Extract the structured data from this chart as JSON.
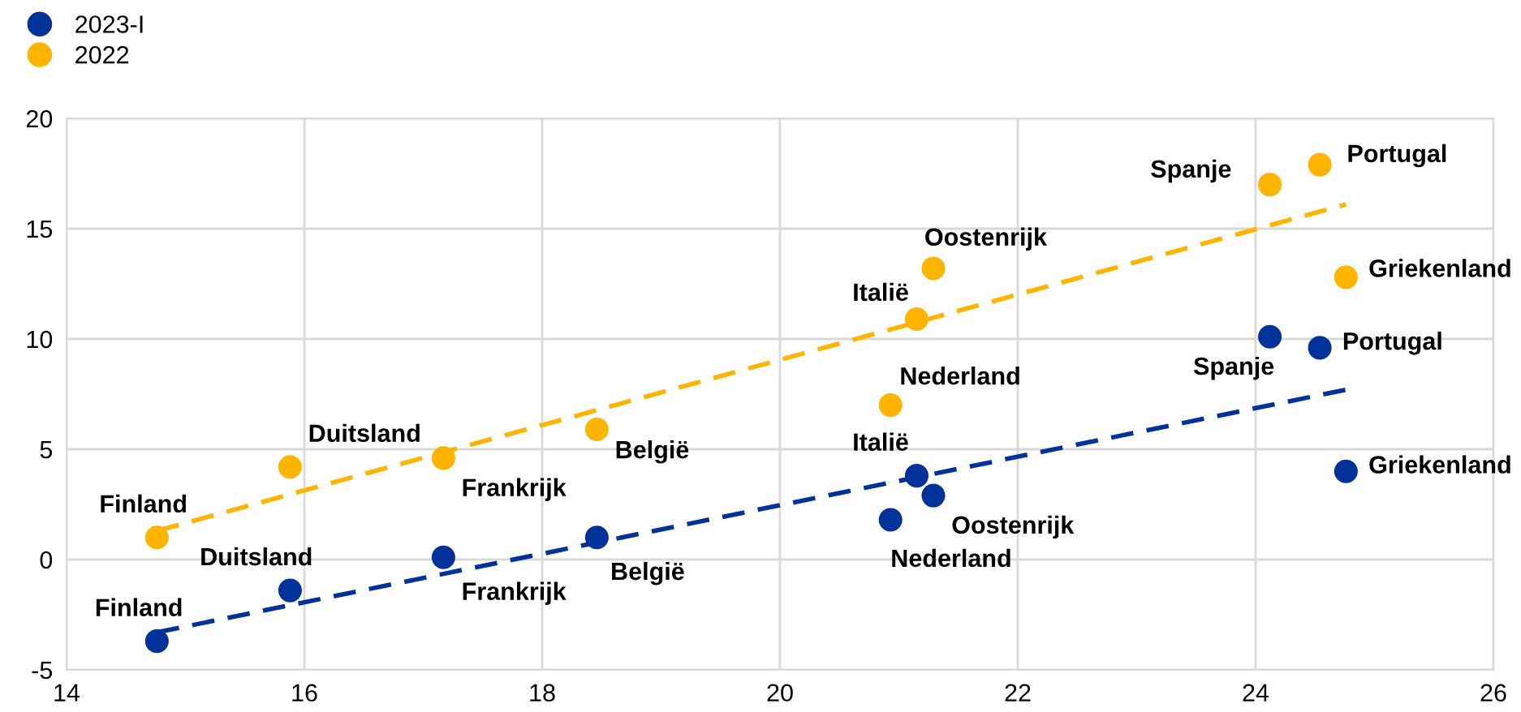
{
  "chart_data": {
    "type": "scatter",
    "xlim": [
      14,
      26
    ],
    "ylim": [
      -5,
      20
    ],
    "xticks": [
      14,
      16,
      18,
      20,
      22,
      24,
      26
    ],
    "yticks": [
      -5,
      0,
      5,
      10,
      15,
      20
    ],
    "grid": true,
    "legend": "top left",
    "marker": "circle",
    "series": [
      {
        "name": "2023-I",
        "color": "#003299",
        "x": [
          14.76,
          15.88,
          17.17,
          18.46,
          20.93,
          21.15,
          21.29,
          24.12,
          24.54,
          24.76
        ],
        "values": [
          -3.7,
          -1.4,
          0.1,
          1.0,
          1.8,
          3.8,
          2.9,
          10.1,
          9.6,
          4.0
        ]
      },
      {
        "name": "2022",
        "color": "#ffb400",
        "x": [
          14.76,
          15.88,
          17.17,
          18.46,
          20.93,
          21.15,
          21.29,
          24.12,
          24.54,
          24.76
        ],
        "values": [
          1.0,
          4.2,
          4.6,
          5.9,
          7.0,
          10.9,
          13.2,
          17.0,
          17.9,
          12.8
        ]
      },
      {
        "type": "line",
        "color": "#003299",
        "line_style": "dashed",
        "marker": "none",
        "x": [
          14.76,
          24.76
        ],
        "values": [
          -3.3,
          7.7
        ]
      },
      {
        "type": "line",
        "color": "#ffb400",
        "line_style": "dashed",
        "marker": "none",
        "x": [
          14.76,
          24.76
        ],
        "values": [
          1.3,
          16.1
        ]
      }
    ],
    "annotations": [
      {
        "text": "Finland",
        "x": 14.76,
        "y": -3.7
      },
      {
        "text": "Duitsland",
        "x": 15.88,
        "y": -1.4
      },
      {
        "text": "Frankrijk",
        "x": 17.17,
        "y": 0.1
      },
      {
        "text": "België",
        "x": 18.46,
        "y": 1.0
      },
      {
        "text": "Nederland",
        "x": 20.93,
        "y": 1.8
      },
      {
        "text": "Italië",
        "x": 21.15,
        "y": 3.8
      },
      {
        "text": "Oostenrijk",
        "x": 21.29,
        "y": 2.9
      },
      {
        "text": "Spanje",
        "x": 24.12,
        "y": 10.1
      },
      {
        "text": "Portugal",
        "x": 24.54,
        "y": 9.6
      },
      {
        "text": "Griekenland",
        "x": 24.76,
        "y": 4.0
      },
      {
        "text": "Finland",
        "x": 14.76,
        "y": 1.0
      },
      {
        "text": "Duitsland",
        "x": 15.88,
        "y": 4.2
      },
      {
        "text": "Frankrijk",
        "x": 17.17,
        "y": 4.6
      },
      {
        "text": "België",
        "x": 18.46,
        "y": 5.9
      },
      {
        "text": "Nederland",
        "x": 20.93,
        "y": 7.0
      },
      {
        "text": "Italië",
        "x": 21.15,
        "y": 10.9
      },
      {
        "text": "Oostenrijk",
        "x": 21.29,
        "y": 13.2
      },
      {
        "text": "Spanje",
        "x": 24.12,
        "y": 17.0
      },
      {
        "text": "Portugal",
        "x": 24.54,
        "y": 17.9
      },
      {
        "text": "Griekenland",
        "x": 24.76,
        "y": 12.8
      }
    ]
  }
}
